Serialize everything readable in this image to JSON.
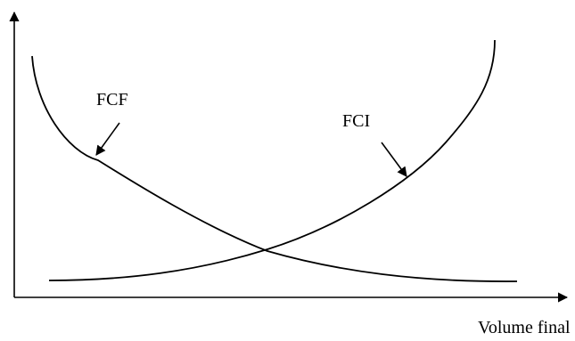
{
  "diagram": {
    "xlabel": "Volume final",
    "ylabel": "",
    "curves": [
      {
        "id": "fcf",
        "label": "FCF"
      },
      {
        "id": "fci",
        "label": "FCI"
      }
    ],
    "colors": {
      "ink": "#000000",
      "background": "#ffffff"
    }
  }
}
